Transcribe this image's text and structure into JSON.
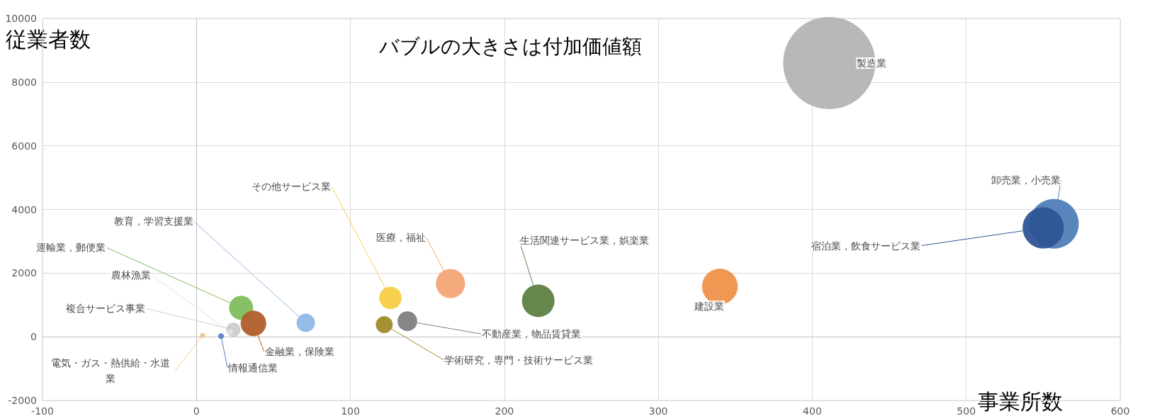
{
  "chart_data": {
    "type": "bubble",
    "title": "バブルの大きさは付加価値額",
    "xlabel": "事業所数",
    "ylabel": "従業者数",
    "xlim": [
      -100,
      600
    ],
    "xticks": [
      -100,
      0,
      100,
      200,
      300,
      400,
      500,
      600
    ],
    "ylim": [
      -2000,
      10000
    ],
    "yticks": [
      -2000,
      0,
      2000,
      4000,
      6000,
      8000,
      10000
    ],
    "grid": true,
    "legend": false,
    "series": [
      {
        "name": "製造業",
        "color": "#b4b4b4",
        "x": [
          411
        ],
        "values": [
          8600
        ],
        "sizes": [
          1
        ]
      },
      {
        "name": "卸売業，小売業",
        "color": "#4f80b8",
        "x": [
          557
        ],
        "values": [
          3550
        ],
        "sizes": [
          0.29
        ]
      },
      {
        "name": "宿泊業，飲食サービス業",
        "color": "#2e5595",
        "x": [
          550
        ],
        "values": [
          3420
        ],
        "sizes": [
          0.2
        ]
      },
      {
        "name": "建設業",
        "color": "#f0914b",
        "x": [
          340
        ],
        "values": [
          1580
        ],
        "sizes": [
          0.15
        ]
      },
      {
        "name": "生活関連サービス業，娯楽業",
        "color": "#5e7f45",
        "x": [
          222
        ],
        "values": [
          1130
        ],
        "sizes": [
          0.125
        ]
      },
      {
        "name": "医療，福祉",
        "color": "#f4a577",
        "x": [
          165
        ],
        "values": [
          1670
        ],
        "sizes": [
          0.1
        ]
      },
      {
        "name": "その他サービス業",
        "color": "#f7cf45",
        "x": [
          126
        ],
        "values": [
          1220
        ],
        "sizes": [
          0.06
        ]
      },
      {
        "name": "不動産業，物品賃貸業",
        "color": "#808080",
        "x": [
          137
        ],
        "values": [
          490
        ],
        "sizes": [
          0.046
        ]
      },
      {
        "name": "学術研究，専門・技術サービス業",
        "color": "#a08a2a",
        "x": [
          122
        ],
        "values": [
          380
        ],
        "sizes": [
          0.034
        ]
      },
      {
        "name": "教育，学習支援業",
        "color": "#8fb7e6",
        "x": [
          71
        ],
        "values": [
          440
        ],
        "sizes": [
          0.04
        ]
      },
      {
        "name": "運輸業，郵便業",
        "color": "#7fbd5c",
        "x": [
          29
        ],
        "values": [
          910
        ],
        "sizes": [
          0.068
        ]
      },
      {
        "name": "金融業，保険業",
        "color": "#b05f2a",
        "x": [
          37
        ],
        "values": [
          420
        ],
        "sizes": [
          0.077
        ]
      },
      {
        "name": "複合サービス事業",
        "color": "#cccccc",
        "x": [
          24
        ],
        "values": [
          220
        ],
        "sizes": [
          0.024
        ]
      },
      {
        "name": "農林漁業",
        "color": "#e0e0e0",
        "x": [
          22
        ],
        "values": [
          150
        ],
        "sizes": [
          0.004
        ]
      },
      {
        "name": "情報通信業",
        "color": "#5a7ec0",
        "x": [
          16
        ],
        "values": [
          20
        ],
        "sizes": [
          0.004
        ]
      },
      {
        "name": "電気・ガス・熱供給・水道業",
        "color": "#f6c48a",
        "x": [
          4
        ],
        "values": [
          40
        ],
        "sizes": [
          0.003
        ]
      }
    ]
  }
}
